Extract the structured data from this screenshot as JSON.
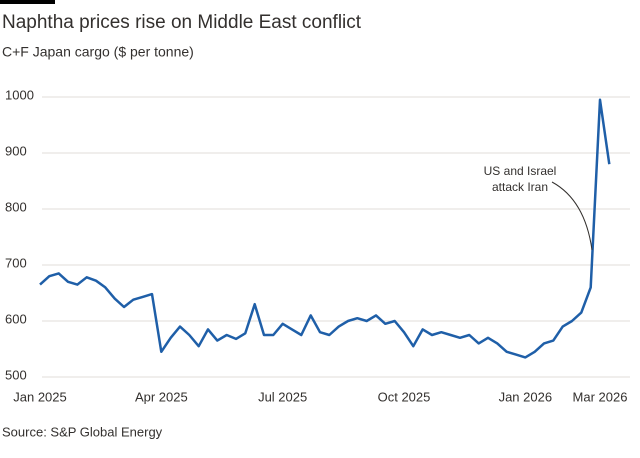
{
  "chart_data": {
    "type": "line",
    "title": "Naphtha prices rise on Middle East conflict",
    "subtitle": "C+F Japan cargo ($ per tonne)",
    "source": "Source: S&P Global Energy",
    "annotation": {
      "lines": [
        "US and Israel",
        "attack Iran"
      ]
    },
    "categories": [
      "Jan 2025",
      null,
      null,
      null,
      null,
      null,
      null,
      null,
      null,
      null,
      null,
      null,
      null,
      "Apr 2025",
      null,
      null,
      null,
      null,
      null,
      null,
      null,
      null,
      null,
      null,
      null,
      null,
      "Jul 2025",
      null,
      null,
      null,
      null,
      null,
      null,
      null,
      null,
      null,
      null,
      null,
      null,
      "Oct 2025",
      null,
      null,
      null,
      null,
      null,
      null,
      null,
      null,
      null,
      null,
      null,
      null,
      "Jan 2026",
      null,
      null,
      null,
      null,
      null,
      null,
      null,
      "Mar 2026",
      null
    ],
    "series": [
      {
        "name": "C+F Japan cargo",
        "color": "#1f5fa8",
        "values": [
          665,
          680,
          685,
          670,
          665,
          678,
          672,
          660,
          640,
          625,
          638,
          643,
          648,
          545,
          570,
          590,
          575,
          555,
          585,
          565,
          575,
          568,
          578,
          630,
          575,
          575,
          595,
          585,
          575,
          610,
          580,
          575,
          590,
          600,
          605,
          600,
          610,
          595,
          600,
          580,
          555,
          585,
          575,
          580,
          575,
          570,
          575,
          560,
          570,
          560,
          545,
          540,
          535,
          545,
          560,
          565,
          590,
          600,
          615,
          660,
          995,
          880
        ]
      }
    ],
    "ylim": [
      500,
      1000
    ],
    "yticks": [
      500,
      600,
      700,
      800,
      900,
      1000
    ],
    "grid": true
  }
}
